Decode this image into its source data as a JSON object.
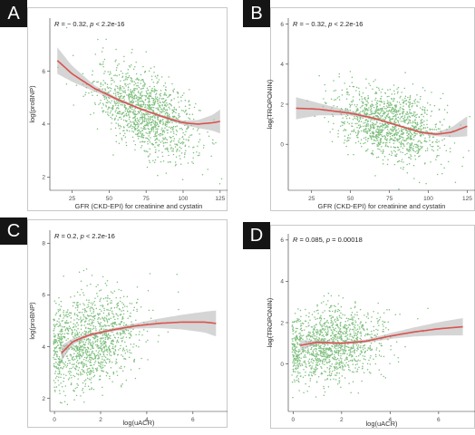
{
  "panels": [
    {
      "letter": "A",
      "stat": {
        "r": "R = − 0.32, ",
        "p_sym": "p",
        "p_val": " < 2.2e-16"
      }
    },
    {
      "letter": "B",
      "stat": {
        "r": "R = − 0.32, ",
        "p_sym": "p",
        "p_val": " < 2.2e-16"
      }
    },
    {
      "letter": "C",
      "stat": {
        "r": "R = 0.2, ",
        "p_sym": "p",
        "p_val": " < 2.2e-16"
      }
    },
    {
      "letter": "D",
      "stat": {
        "r": "R = 0.085, ",
        "p_sym": "p",
        "p_val": " = 0.00018"
      }
    }
  ],
  "colors": {
    "points": "#7fbf7f",
    "fit_line": "#d9534f",
    "ci_band": "#b3b3b3",
    "badge": "#151515"
  },
  "chart_data": [
    {
      "type": "scatter",
      "title": "",
      "xlabel": "GFR (CKD-EPI)  for creatinine and cystatin",
      "ylabel": "log(proBNP)",
      "xlim": [
        10,
        130
      ],
      "ylim": [
        1.5,
        8
      ],
      "xticks": [
        25,
        50,
        75,
        100,
        125
      ],
      "yticks": [
        2,
        4,
        6
      ],
      "grid": false,
      "scatter": {
        "x_center": 75,
        "x_sd": 17,
        "y_intercept": 4.45,
        "slope": -0.024,
        "y_sd": 0.72,
        "n": 1300
      },
      "fit": {
        "x": [
          15,
          25,
          40,
          55,
          70,
          85,
          100,
          110,
          120,
          125
        ],
        "y": [
          6.4,
          5.9,
          5.35,
          4.95,
          4.6,
          4.3,
          4.05,
          4.0,
          4.05,
          4.1
        ]
      },
      "ci_half_width": {
        "x": [
          15,
          25,
          40,
          55,
          70,
          85,
          100,
          110,
          120,
          125
        ],
        "w": [
          0.5,
          0.3,
          0.12,
          0.06,
          0.04,
          0.05,
          0.08,
          0.15,
          0.3,
          0.45
        ]
      }
    },
    {
      "type": "scatter",
      "title": "",
      "xlabel": "GFR (CKD-EPI)  for creatinine and cystatin",
      "ylabel": "log(TROPONIN)",
      "xlim": [
        10,
        130
      ],
      "ylim": [
        -2.3,
        6.3
      ],
      "xticks": [
        25,
        50,
        75,
        100,
        125
      ],
      "yticks": [
        0,
        2,
        4,
        6
      ],
      "grid": false,
      "scatter": {
        "x_center": 75,
        "x_sd": 17,
        "y_intercept": 1.0,
        "slope": -0.02,
        "y_sd": 0.85,
        "n": 1300
      },
      "fit": {
        "x": [
          15,
          30,
          50,
          65,
          80,
          95,
          105,
          115,
          125
        ],
        "y": [
          1.8,
          1.75,
          1.55,
          1.3,
          0.95,
          0.6,
          0.5,
          0.6,
          0.9
        ]
      },
      "ci_half_width": {
        "x": [
          15,
          30,
          50,
          65,
          80,
          95,
          105,
          115,
          125
        ],
        "w": [
          0.55,
          0.3,
          0.1,
          0.06,
          0.05,
          0.06,
          0.1,
          0.25,
          0.5
        ]
      }
    },
    {
      "type": "scatter",
      "title": "",
      "xlabel": "log(uACR)",
      "ylabel": "log(proBNP)",
      "xlim": [
        -0.2,
        7.5
      ],
      "ylim": [
        1.5,
        8.5
      ],
      "xticks": [
        0,
        2,
        4,
        6
      ],
      "yticks": [
        2,
        4,
        6,
        8
      ],
      "grid": false,
      "scatter": {
        "x_center": 1.5,
        "x_sd": 1.1,
        "y_intercept": 4.2,
        "slope": 0.22,
        "y_sd": 0.85,
        "n": 1300
      },
      "fit": {
        "x": [
          0.3,
          0.8,
          1.5,
          2.5,
          3.5,
          4.5,
          5.5,
          6.5,
          7.0
        ],
        "y": [
          3.75,
          4.2,
          4.45,
          4.65,
          4.8,
          4.9,
          4.95,
          4.95,
          4.9
        ]
      },
      "ci_half_width": {
        "x": [
          0.3,
          0.8,
          1.5,
          2.5,
          3.5,
          4.5,
          5.5,
          6.5,
          7.0
        ],
        "w": [
          0.3,
          0.12,
          0.06,
          0.06,
          0.1,
          0.18,
          0.28,
          0.4,
          0.5
        ]
      }
    },
    {
      "type": "scatter",
      "title": "",
      "xlabel": "log(uACR)",
      "ylabel": "log(TROPONIN)",
      "xlim": [
        -0.2,
        7.5
      ],
      "ylim": [
        -2.3,
        6.3
      ],
      "xticks": [
        0,
        2,
        4,
        6
      ],
      "yticks": [
        0,
        2,
        4,
        6
      ],
      "grid": false,
      "scatter": {
        "x_center": 1.5,
        "x_sd": 1.1,
        "y_intercept": 0.9,
        "slope": 0.12,
        "y_sd": 0.85,
        "n": 1300
      },
      "fit": {
        "x": [
          0.3,
          1.0,
          2.0,
          3.0,
          4.0,
          5.0,
          6.0,
          7.0
        ],
        "y": [
          0.9,
          1.05,
          1.0,
          1.1,
          1.35,
          1.55,
          1.7,
          1.8
        ]
      },
      "ci_half_width": {
        "x": [
          0.3,
          1.0,
          2.0,
          3.0,
          4.0,
          5.0,
          6.0,
          7.0
        ],
        "w": [
          0.25,
          0.08,
          0.06,
          0.08,
          0.14,
          0.22,
          0.32,
          0.42
        ]
      }
    }
  ]
}
